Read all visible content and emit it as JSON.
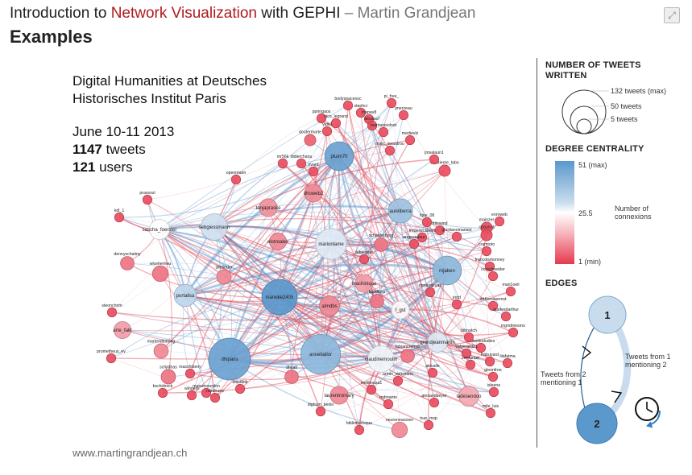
{
  "header": {
    "title_part1": "Introduction to ",
    "title_part2": "Network Visualization",
    "title_part3": " with GEPHI",
    "title_part4": " – Martin Grandjean",
    "page_title": "Examples",
    "expand_icon": "expand-icon"
  },
  "info": {
    "line1": "Digital Humanities at Deutsches",
    "line2": "Historisches Institut Paris",
    "date": "June 10-11 2013",
    "tweets_count": "1147",
    "tweets_label": " tweets",
    "users_count": "121",
    "users_label": " users"
  },
  "footer": {
    "url": "www.martingrandjean.ch"
  },
  "legend": {
    "tweets_title_line1": "NUMBER OF TWEETS",
    "tweets_title_line2": "WRITTEN",
    "tweets_max": "132 tweets (max)",
    "tweets_mid": "50 tweets",
    "tweets_min": "5 tweets",
    "degree_title": "DEGREE CENTRALITY",
    "degree_max": "51 (max)",
    "degree_mid": "25.5",
    "degree_min": "1 (min)",
    "degree_caption_line1": "Number of",
    "degree_caption_line2": "connexions",
    "edges_title": "EDGES",
    "edge_node1": "1",
    "edge_node2": "2",
    "edge_label_a_line1": "Tweets from 1",
    "edge_label_a_line2": "mentioning 2",
    "edge_label_b_line1": "Tweets from 2",
    "edge_label_b_line2": "mentioning 1",
    "clock_icon": "clock-icon",
    "colors": {
      "high": "#5b98cc",
      "mid": "#ffffff",
      "low": "#e6394e"
    }
  },
  "network": {
    "nodes": [
      {
        "id": "pluim70",
        "label": "pluim70",
        "deg": 0.95,
        "tw": 0.55
      },
      {
        "id": "aurelberra",
        "label": "aurelberra",
        "deg": 0.8,
        "tw": 0.45
      },
      {
        "id": "sebgiessmann",
        "label": "sebgiessmann",
        "deg": 0.65,
        "tw": 0.5
      },
      {
        "id": "marionlame",
        "label": "marionlame",
        "deg": 0.6,
        "tw": 0.6
      },
      {
        "id": "mareike2405",
        "label": "mareike2405",
        "deg": 1.0,
        "tw": 0.7
      },
      {
        "id": "mjaben",
        "label": "mjaben",
        "deg": 0.85,
        "tw": 0.55
      },
      {
        "id": "dhiparis",
        "label": "dhiparis",
        "deg": 0.95,
        "tw": 0.85
      },
      {
        "id": "anneballor",
        "label": "anneballor",
        "deg": 0.85,
        "tw": 0.8
      },
      {
        "id": "claudinemoulin",
        "label": "claudinemoulin",
        "deg": 0.55,
        "tw": 0.5
      },
      {
        "id": "portalisa",
        "label": "portalisa",
        "deg": 0.7,
        "tw": 0.4
      },
      {
        "id": "sascha_foerster",
        "label": "sascha_foerster",
        "deg": 0.5,
        "tw": 0.35
      },
      {
        "id": "grandjeanmartin",
        "label": "grandjeanmartin",
        "deg": 0.6,
        "tw": 0.35
      },
      {
        "id": "f_gst",
        "label": "f_gst",
        "deg": 0.48,
        "tw": 0.3
      },
      {
        "id": "almdbs",
        "label": "almdbs",
        "deg": 0.2,
        "tw": 0.35
      },
      {
        "id": "ladesendoo",
        "label": "ladesendoo",
        "deg": 0.28,
        "tw": 0.35
      },
      {
        "id": "laurentromary",
        "label": "laurentromary",
        "deg": 0.2,
        "tw": 0.3
      },
      {
        "id": "neuroneancien",
        "label": "neuroneancien",
        "deg": 0.2,
        "tw": 0.25
      },
      {
        "id": "dhoweb2",
        "label": "dhoweb2",
        "deg": 0.2,
        "tw": 0.3
      },
      {
        "id": "tanjapraske",
        "label": "tanjapraske",
        "deg": 0.22,
        "tw": 0.3
      },
      {
        "id": "elotroalex",
        "label": "elotroalex",
        "deg": 0.2,
        "tw": 0.28
      },
      {
        "id": "machinique",
        "label": "machinique",
        "deg": 0.25,
        "tw": 0.3
      },
      {
        "id": "arte_fakt",
        "label": "arte_fakt",
        "deg": 0.25,
        "tw": 0.28
      },
      {
        "id": "wiceherneu",
        "label": "wiceherneu",
        "deg": 0.15,
        "tw": 0.25
      },
      {
        "id": "schjidbas",
        "label": "schjidbas",
        "deg": 0.15,
        "tw": 0.22
      },
      {
        "id": "martendiuering",
        "label": "martendiuering",
        "deg": 0.2,
        "tw": 0.22
      },
      {
        "id": "sitefinder",
        "label": "sitefinder",
        "deg": 0.2,
        "tw": 0.22
      },
      {
        "id": "dennyschalmy",
        "label": "dennyschalmy",
        "deg": 0.15,
        "tw": 0.2
      },
      {
        "id": "kaptfluss",
        "label": "kaptfluss",
        "deg": 0.15,
        "tw": 0.2
      },
      {
        "id": "fabiancremer",
        "label": "fabiancremer",
        "deg": 0.15,
        "tw": 0.2
      },
      {
        "id": "dhcalt",
        "label": "dhcalt",
        "deg": 0.15,
        "tw": 0.2
      },
      {
        "id": "doutermarte",
        "label": "doutermarte",
        "deg": 0.1,
        "tw": 0.15
      },
      {
        "id": "deuxieme_labo",
        "label": "deuxieme_labo",
        "deg": 0.05,
        "tw": 0.15
      },
      {
        "id": "mainzer",
        "label": "mainzer",
        "deg": 0.05,
        "tw": 0.15
      },
      {
        "id": "bodyspacesoc",
        "label": "bodyspacesoc",
        "deg": 0.05,
        "tw": 0.1
      },
      {
        "id": "pi_free_",
        "label": "pi_free_",
        "deg": 0.05,
        "tw": 0.1
      },
      {
        "id": "stephcr",
        "label": "stephcr",
        "deg": 0.05,
        "tw": 0.1
      },
      {
        "id": "mapav8",
        "label": "mapav8",
        "deg": 0.05,
        "tw": 0.1
      },
      {
        "id": "jmerzeau",
        "label": "jmerzeau",
        "deg": 0.05,
        "tw": 0.1
      },
      {
        "id": "ppringaos",
        "label": "ppringaos",
        "deg": 0.05,
        "tw": 0.1
      },
      {
        "id": "nico_legrand",
        "label": "nico_legrand",
        "deg": 0.05,
        "tw": 0.1
      },
      {
        "id": "alinaza7",
        "label": "alinaza7",
        "deg": 0.05,
        "tw": 0.1
      },
      {
        "id": "marinessolnot",
        "label": "marinessolnot",
        "deg": 0.05,
        "tw": 0.1
      },
      {
        "id": "vidkli",
        "label": "vidkli",
        "deg": 0.05,
        "tw": 0.1
      },
      {
        "id": "medievlz",
        "label": "medievlz",
        "deg": 0.05,
        "tw": 0.1
      },
      {
        "id": "jmsalaun1",
        "label": "jmsalaun1",
        "deg": 0.05,
        "tw": 0.1
      },
      {
        "id": "marc_lavastrou",
        "label": "marc_lavastrou",
        "deg": 0.05,
        "tw": 0.1
      },
      {
        "id": "mr56k",
        "label": "mr56k",
        "deg": 0.05,
        "tw": 0.1
      },
      {
        "id": "didierchanu",
        "label": "didierchanu",
        "deg": 0.05,
        "tw": 0.1
      },
      {
        "id": "rivard",
        "label": "rivard",
        "deg": 0.05,
        "tw": 0.1
      },
      {
        "id": "openmarin",
        "label": "openmarin",
        "deg": 0.05,
        "tw": 0.1
      },
      {
        "id": "praxsozi",
        "label": "praxsozi",
        "deg": 0.05,
        "tw": 0.1
      },
      {
        "id": "kdl_1",
        "label": "kdl_1",
        "deg": 0.05,
        "tw": 0.1
      },
      {
        "id": "hjoe_08",
        "label": "hjoe_08",
        "deg": 0.05,
        "tw": 0.1
      },
      {
        "id": "fritzwind",
        "label": "fritzwind",
        "deg": 0.05,
        "tw": 0.1
      },
      {
        "id": "fredericclavert",
        "label": "fredericclavert",
        "deg": 0.05,
        "tw": 0.1
      },
      {
        "id": "giordanomariani",
        "label": "giordanomariani",
        "deg": 0.05,
        "tw": 0.1
      },
      {
        "id": "angeasaour",
        "label": "angeasaour",
        "deg": 0.05,
        "tw": 0.1
      },
      {
        "id": "enroweb",
        "label": "enroweb",
        "deg": 0.05,
        "tw": 0.1
      },
      {
        "id": "cpourrat",
        "label": "cpourrat",
        "deg": 0.05,
        "tw": 0.15
      },
      {
        "id": "cramtoto",
        "label": "cramtoto",
        "deg": 0.05,
        "tw": 0.1
      },
      {
        "id": "francoismonney",
        "label": "francoismonney",
        "deg": 0.05,
        "tw": 0.1
      },
      {
        "id": "corschneider",
        "label": "corschneider",
        "deg": 0.05,
        "tw": 0.1
      },
      {
        "id": "mari1oeil",
        "label": "mari1oeil",
        "deg": 0.05,
        "tw": 0.1
      },
      {
        "id": "drthomasemst",
        "label": "drthomasemst",
        "deg": 0.05,
        "tw": 0.1
      },
      {
        "id": "quotesdarthur",
        "label": "quotesdarthur",
        "deg": 0.05,
        "tw": 0.1
      },
      {
        "id": "ingridmesmo",
        "label": "ingridmesmo",
        "deg": 0.05,
        "tw": 0.1
      },
      {
        "id": "networkstudies",
        "label": "networkstudies",
        "deg": 0.05,
        "tw": 0.1
      },
      {
        "id": "valgerard21",
        "label": "valgerard21",
        "deg": 0.05,
        "tw": 0.1
      },
      {
        "id": "frabuyard",
        "label": "frabuyard",
        "deg": 0.05,
        "tw": 0.1
      },
      {
        "id": "lilafatma",
        "label": "lilafatma",
        "deg": 0.05,
        "tw": 0.1
      },
      {
        "id": "zerpuriad",
        "label": "zerpuriad",
        "deg": 0.05,
        "tw": 0.1
      },
      {
        "id": "glennfroe",
        "label": "glennfroe",
        "deg": 0.05,
        "tw": 0.1
      },
      {
        "id": "isleene",
        "label": "isleene",
        "deg": 0.05,
        "tw": 0.1
      },
      {
        "id": "mile_luis",
        "label": "mile_luis",
        "deg": 0.05,
        "tw": 0.1
      },
      {
        "id": "true_mxp",
        "label": "true_mxp",
        "deg": 0.05,
        "tw": 0.1
      },
      {
        "id": "bibliothetuque",
        "label": "bibliothetuque",
        "deg": 0.05,
        "tw": 0.1
      },
      {
        "id": "dighum_berlin",
        "label": "dighum_berlin",
        "deg": 0.05,
        "tw": 0.1
      },
      {
        "id": "akivalle",
        "label": "akivalle",
        "deg": 0.05,
        "tw": 0.1
      },
      {
        "id": "alexandbeyer",
        "label": "alexandbeyer",
        "deg": 0.05,
        "tw": 0.1
      },
      {
        "id": "mdmanto",
        "label": "mdmanto",
        "deg": 0.05,
        "tw": 0.1
      },
      {
        "id": "melibousa1",
        "label": "melibousa1",
        "deg": 0.05,
        "tw": 0.1
      },
      {
        "id": "armin_volkmann",
        "label": "armin_volkmann",
        "deg": 0.05,
        "tw": 0.1
      },
      {
        "id": "prometheus_ev",
        "label": "prometheus_ev",
        "deg": 0.05,
        "tw": 0.1
      },
      {
        "id": "steonchrim",
        "label": "steonchrim",
        "deg": 0.05,
        "tw": 0.1
      },
      {
        "id": "bschirbock",
        "label": "bschirbock",
        "deg": 0.05,
        "tw": 0.1
      },
      {
        "id": "wlogers",
        "label": "wlogers",
        "deg": 0.05,
        "tw": 0.1
      },
      {
        "id": "manumourdon",
        "label": "manumourdon",
        "deg": 0.05,
        "tw": 0.1
      },
      {
        "id": "nordnues",
        "label": "nordnues",
        "deg": 0.05,
        "tw": 0.1
      },
      {
        "id": "dhistlbib",
        "label": "dhistlbib",
        "deg": 0.05,
        "tw": 0.1
      },
      {
        "id": "maschibeny",
        "label": "maschibeny",
        "deg": 0.05,
        "tw": 0.1
      },
      {
        "id": "fabiennet",
        "label": "fabiennet",
        "deg": 0.05,
        "tw": 0.1
      },
      {
        "id": "bibnatch",
        "label": "bibnatch",
        "deg": 0.05,
        "tw": 0.1
      },
      {
        "id": "schaeferberg",
        "label": "schaeferberg",
        "deg": 0.15,
        "tw": 0.2
      },
      {
        "id": "jndd",
        "label": "jndd",
        "deg": 0.05,
        "tw": 0.1
      },
      {
        "id": "mmanticuaz",
        "label": "mmanticuaz",
        "deg": 0.05,
        "tw": 0.1
      }
    ]
  }
}
